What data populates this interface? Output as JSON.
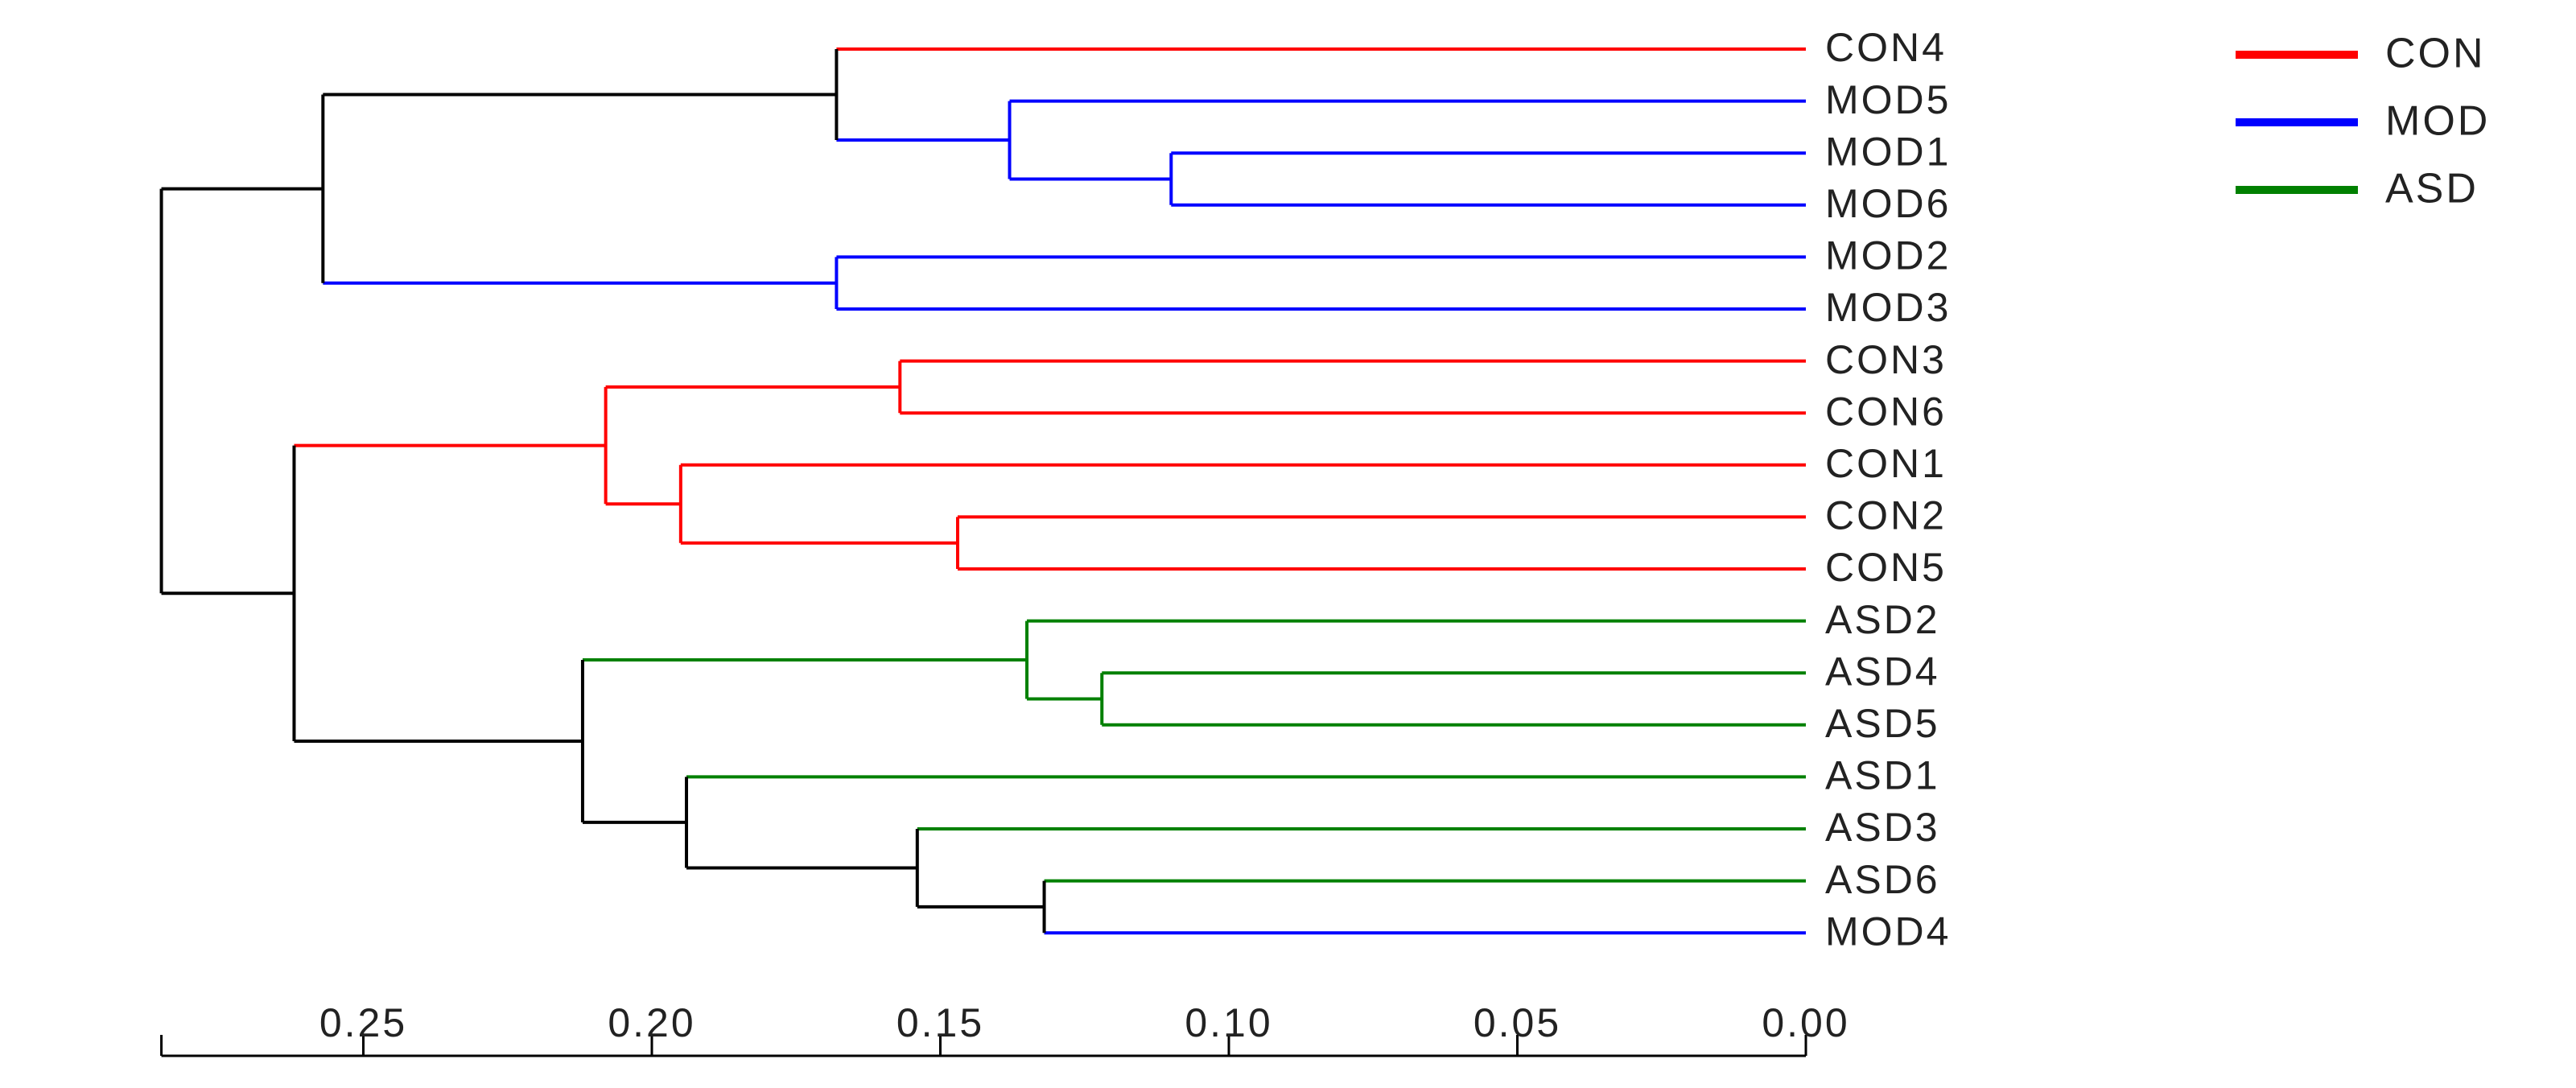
{
  "chart_data": {
    "type": "dendrogram",
    "leaves": [
      "CON4",
      "MOD5",
      "MOD1",
      "MOD6",
      "MOD2",
      "MOD3",
      "CON3",
      "CON6",
      "CON1",
      "CON2",
      "CON5",
      "ASD2",
      "ASD4",
      "ASD5",
      "ASD1",
      "ASD3",
      "ASD6",
      "MOD4"
    ],
    "merges": [
      {
        "id": "n1",
        "height": 0.11,
        "children": [
          "MOD1",
          "MOD6"
        ],
        "color": "MOD"
      },
      {
        "id": "n2",
        "height": 0.138,
        "children": [
          "MOD5",
          "n1"
        ],
        "color": "MOD"
      },
      {
        "id": "n3",
        "height": 0.168,
        "children": [
          "CON4",
          "n2"
        ],
        "color": "black",
        "links": [
          "CON",
          "MOD"
        ]
      },
      {
        "id": "n4",
        "height": 0.168,
        "children": [
          "MOD2",
          "MOD3"
        ],
        "color": "MOD"
      },
      {
        "id": "n5",
        "height": 0.257,
        "children": [
          "n3",
          "n4"
        ],
        "color": "black",
        "links": [
          "black",
          "MOD"
        ]
      },
      {
        "id": "n6",
        "height": 0.157,
        "children": [
          "CON3",
          "CON6"
        ],
        "color": "CON"
      },
      {
        "id": "n7",
        "height": 0.147,
        "children": [
          "CON2",
          "CON5"
        ],
        "color": "CON"
      },
      {
        "id": "n8",
        "height": 0.195,
        "children": [
          "CON1",
          "n7"
        ],
        "color": "CON"
      },
      {
        "id": "n9",
        "height": 0.208,
        "children": [
          "n6",
          "n8"
        ],
        "color": "CON"
      },
      {
        "id": "n10",
        "height": 0.122,
        "children": [
          "ASD4",
          "ASD5"
        ],
        "color": "ASD"
      },
      {
        "id": "n11",
        "height": 0.135,
        "children": [
          "ASD2",
          "n10"
        ],
        "color": "ASD"
      },
      {
        "id": "n12",
        "height": 0.132,
        "children": [
          "ASD6",
          "MOD4"
        ],
        "color": "black",
        "links": [
          "ASD",
          "MOD"
        ]
      },
      {
        "id": "n13",
        "height": 0.154,
        "children": [
          "ASD3",
          "n12"
        ],
        "color": "black",
        "links": [
          "ASD",
          "black"
        ]
      },
      {
        "id": "n14",
        "height": 0.194,
        "children": [
          "ASD1",
          "n13"
        ],
        "color": "black",
        "links": [
          "ASD",
          "black"
        ]
      },
      {
        "id": "n15",
        "height": 0.212,
        "children": [
          "n11",
          "n14"
        ],
        "color": "black",
        "links": [
          "ASD",
          "black"
        ]
      },
      {
        "id": "n16",
        "height": 0.262,
        "children": [
          "n9",
          "n15"
        ],
        "color": "black",
        "links": [
          "CON",
          "black"
        ]
      },
      {
        "id": "n17",
        "height": 0.285,
        "children": [
          "n5",
          "n16"
        ],
        "color": "black"
      }
    ],
    "leaf_groups": {
      "CON4": "CON",
      "MOD5": "MOD",
      "MOD1": "MOD",
      "MOD6": "MOD",
      "MOD2": "MOD",
      "MOD3": "MOD",
      "CON3": "CON",
      "CON6": "CON",
      "CON1": "CON",
      "CON2": "CON",
      "CON5": "CON",
      "ASD2": "ASD",
      "ASD4": "ASD",
      "ASD5": "ASD",
      "ASD1": "ASD",
      "ASD3": "ASD",
      "ASD6": "ASD",
      "MOD4": "MOD"
    },
    "axis": {
      "ticks": [
        0.25,
        0.2,
        0.15,
        0.1,
        0.05,
        0.0
      ],
      "tick_labels": [
        "0.25",
        "0.20",
        "0.15",
        "0.10",
        "0.05",
        "0.00"
      ],
      "range": [
        0.285,
        0.0
      ],
      "position": "bottom",
      "reversed": true
    },
    "legend": {
      "placement": "top-right",
      "entries": [
        {
          "label": "CON",
          "color": "#ff0000"
        },
        {
          "label": "MOD",
          "color": "#0000ff"
        },
        {
          "label": "ASD",
          "color": "#008000"
        }
      ]
    },
    "colors": {
      "CON": "#ff0000",
      "MOD": "#0000ff",
      "ASD": "#008000",
      "black": "#000000"
    }
  }
}
